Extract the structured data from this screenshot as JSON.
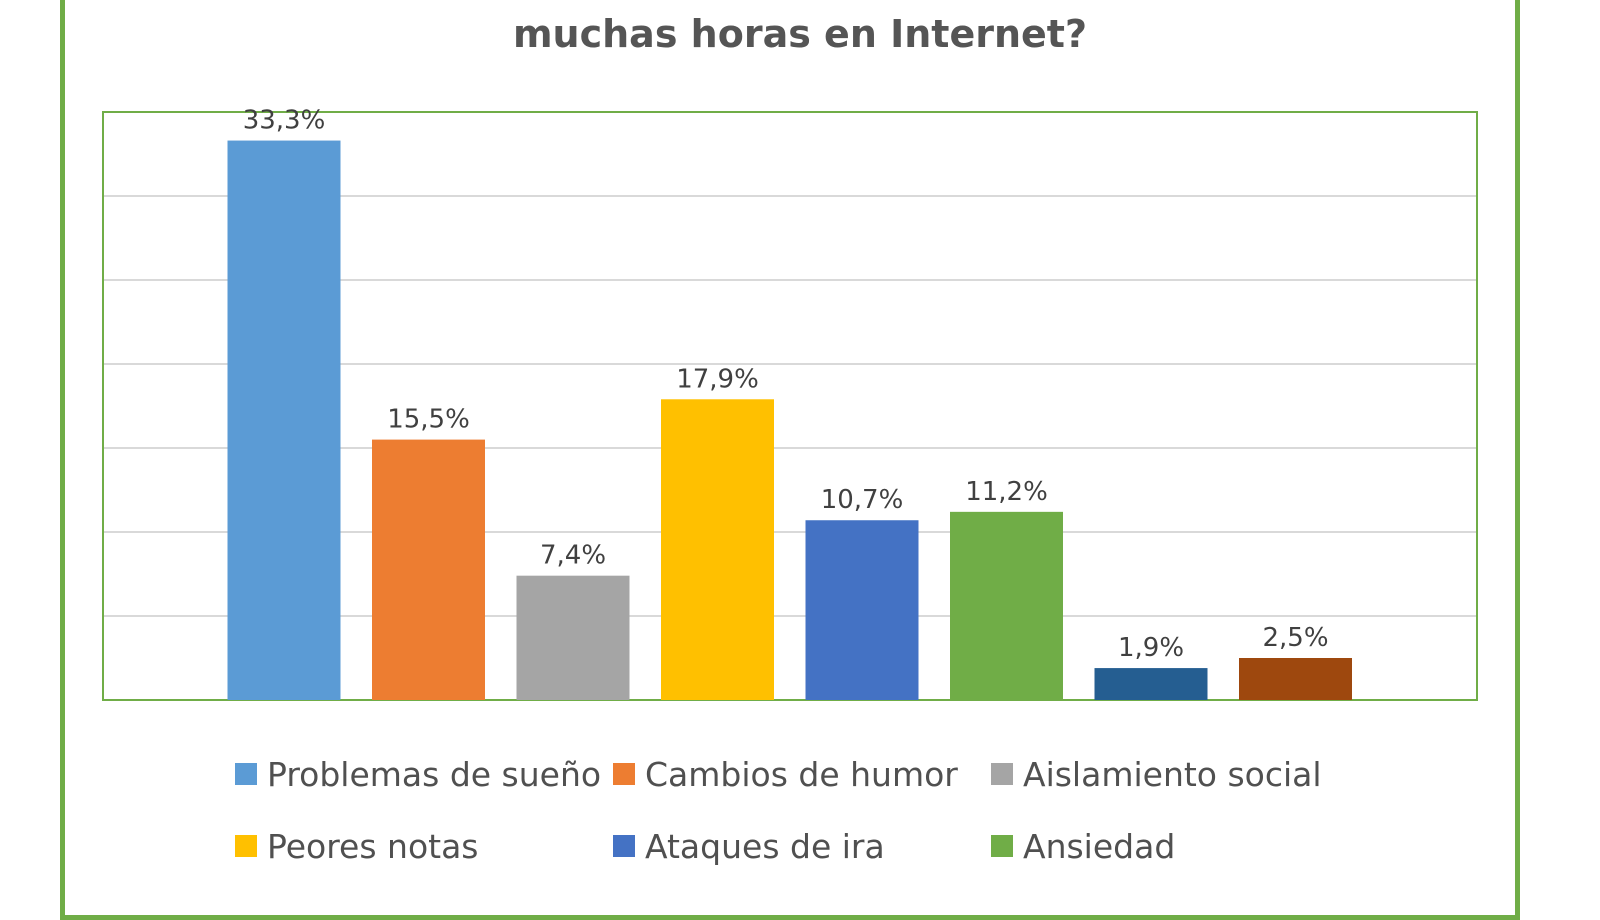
{
  "title": {
    "line1": "",
    "line2": "muchas horas en Internet?"
  },
  "chart_data": {
    "type": "bar",
    "categories": [
      "Problemas de sueño",
      "Cambios de humor",
      "Aislamiento social",
      "Peores notas",
      "Ataques de ira",
      "Ansiedad",
      "",
      ""
    ],
    "values": [
      33.3,
      15.5,
      7.4,
      17.9,
      10.7,
      11.2,
      1.9,
      2.5
    ],
    "data_labels": [
      "33,3%",
      "15,5%",
      "7,4%",
      "17,9%",
      "10,7%",
      "11,2%",
      "1,9%",
      "2,5%"
    ],
    "colors": [
      "#5b9bd5",
      "#ed7d31",
      "#a5a5a5",
      "#ffc000",
      "#4472c4",
      "#70ad47",
      "#255e91",
      "#9e480e"
    ],
    "ylim": [
      0,
      35
    ],
    "grid": true,
    "legend_position": "bottom",
    "border_color": "#70ad47"
  },
  "legend": [
    {
      "label": "Problemas de sueño",
      "color": "#5b9bd5"
    },
    {
      "label": "Cambios de humor",
      "color": "#ed7d31"
    },
    {
      "label": "Aislamiento social",
      "color": "#a5a5a5"
    },
    {
      "label": "Peores notas",
      "color": "#ffc000"
    },
    {
      "label": "Ataques de ira",
      "color": "#4472c4"
    },
    {
      "label": "Ansiedad",
      "color": "#70ad47"
    }
  ]
}
